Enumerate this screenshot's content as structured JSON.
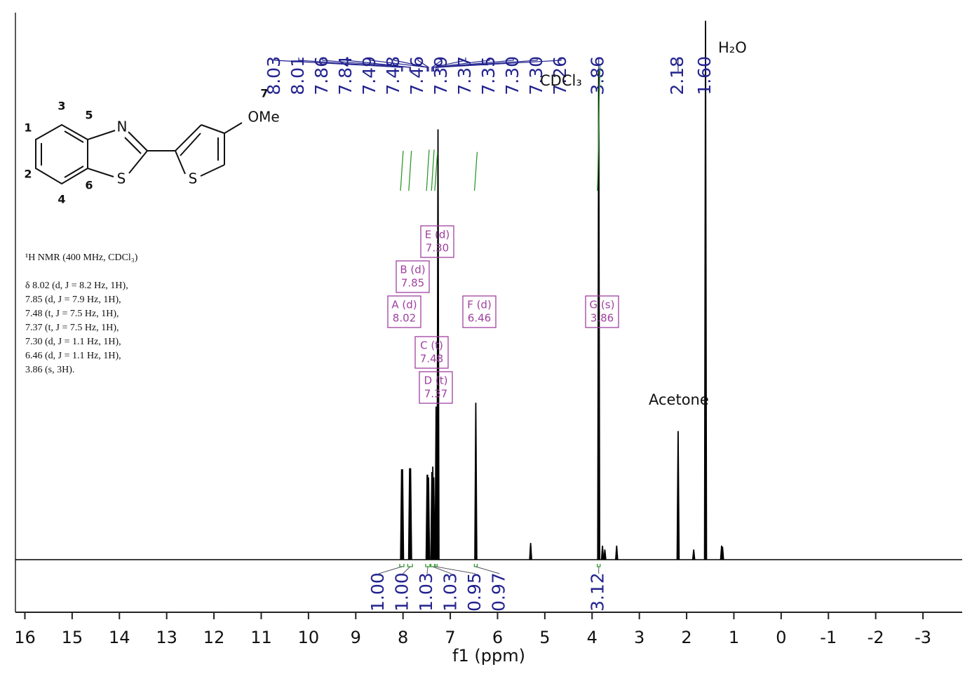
{
  "chart_data": {
    "type": "nmr",
    "x_label": "f1 (ppm)",
    "xlim": [
      16.2,
      -3.83
    ],
    "ylim": [
      0,
      100
    ],
    "xticks": [
      16,
      15,
      14,
      13,
      12,
      11,
      10,
      9,
      8,
      7,
      6,
      5,
      4,
      3,
      2,
      1,
      0,
      -1,
      -2,
      -3
    ],
    "line_color": "#000000",
    "pick_color": "#23238f",
    "integral_color": "#2e9a2e",
    "multiplet_color": "#a040a0",
    "peaks": {
      "x": [
        8.03,
        8.01,
        7.86,
        7.84,
        7.49,
        7.48,
        7.46,
        7.39,
        7.37,
        7.35,
        7.3,
        7.26,
        6.46,
        5.3,
        3.86,
        3.78,
        3.73,
        3.48,
        2.18,
        1.85,
        1.6,
        1.26,
        1.24
      ],
      "values": [
        16.5,
        16.5,
        16.7,
        16.7,
        15.5,
        15.5,
        15.0,
        16.0,
        17.0,
        15.0,
        28.0,
        78.8,
        28.7,
        3.0,
        89.7,
        2.5,
        1.8,
        2.5,
        23.5,
        1.8,
        98.7,
        2.5,
        2.3
      ]
    },
    "peak_picks": [
      {
        "value": 8.03,
        "label": "8.03"
      },
      {
        "value": 8.01,
        "label": "8.01"
      },
      {
        "value": 7.86,
        "label": "7.86"
      },
      {
        "value": 7.84,
        "label": "7.84"
      },
      {
        "value": 7.49,
        "label": "7.49"
      },
      {
        "value": 7.48,
        "label": "7.48"
      },
      {
        "value": 7.46,
        "label": "7.46"
      },
      {
        "value": 7.39,
        "label": "7.39"
      },
      {
        "value": 7.37,
        "label": "7.37"
      },
      {
        "value": 7.35,
        "label": "7.35"
      },
      {
        "value": 7.3,
        "label": "7.30"
      },
      {
        "value": 7.3,
        "label": "7.30"
      },
      {
        "value": 7.26,
        "label": "7.26"
      },
      {
        "value": 3.86,
        "label": "3.86"
      },
      {
        "value": 2.18,
        "label": "2.18"
      },
      {
        "value": 1.6,
        "label": "1.60"
      }
    ],
    "integrals": [
      {
        "range": [
          8.07,
          7.98
        ],
        "value": 1.0,
        "label": "1.00"
      },
      {
        "range": [
          7.9,
          7.8
        ],
        "value": 1.0,
        "label": "1.00"
      },
      {
        "range": [
          7.52,
          7.43
        ],
        "value": 1.03,
        "label": "1.03"
      },
      {
        "range": [
          7.41,
          7.33
        ],
        "value": 1.03,
        "label": "1.03"
      },
      {
        "range": [
          7.32,
          7.28
        ],
        "value": 0.95,
        "label": "0.95"
      },
      {
        "range": [
          6.49,
          6.43
        ],
        "value": 0.97,
        "label": "0.97"
      },
      {
        "range": [
          3.89,
          3.83
        ],
        "value": 3.12,
        "label": "3.12"
      }
    ],
    "multiplets": [
      {
        "name": "A (d)",
        "shift": {
          "value": 8.02,
          "label": "8.02"
        }
      },
      {
        "name": "B (d)",
        "shift": {
          "value": 7.85,
          "label": "7.85"
        }
      },
      {
        "name": "C (t)",
        "shift": {
          "value": 7.48,
          "label": "7.48"
        }
      },
      {
        "name": "D (t)",
        "shift": {
          "value": 7.37,
          "label": "7.37"
        }
      },
      {
        "name": "E (d)",
        "shift": {
          "value": 7.3,
          "label": "7.30"
        }
      },
      {
        "name": "F (d)",
        "shift": {
          "value": 6.46,
          "label": "6.46"
        }
      },
      {
        "name": "G (s)",
        "shift": {
          "value": 3.86,
          "label": "3.86"
        }
      }
    ],
    "annotations": [
      "H₂O",
      "CDCl₃",
      "Acetone"
    ]
  },
  "structure": {
    "atoms": [
      "N",
      "S",
      "S",
      "OMe"
    ],
    "numbers": [
      "1",
      "2",
      "3",
      "4",
      "5",
      "6",
      "7"
    ]
  },
  "description": {
    "title": "¹H NMR (400 MHz, CDCl₃)",
    "lines": [
      "δ 8.02 (d, J = 8.2 Hz, 1H),",
      "7.85 (d, J = 7.9 Hz, 1H),",
      "7.48 (t, J = 7.5 Hz, 1H),",
      "7.37 (t, J = 7.5 Hz, 1H),",
      "7.30 (d, J = 1.1 Hz, 1H),",
      "6.46 (d, J = 1.1 Hz, 1H),",
      "3.86 (s, 3H)."
    ]
  }
}
